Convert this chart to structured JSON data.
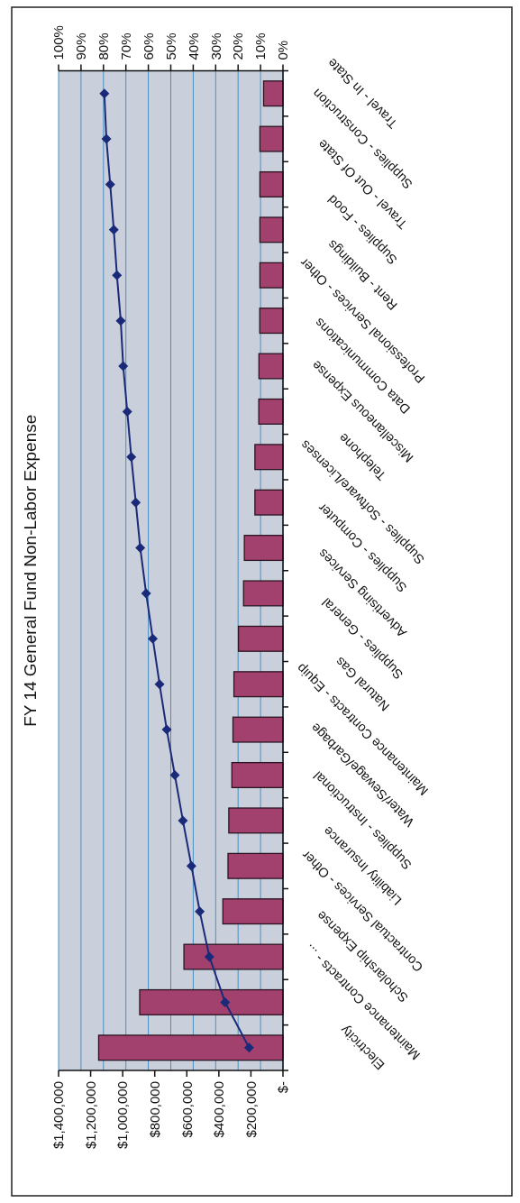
{
  "chart_data": {
    "type": "bar",
    "orientation": "horizontal",
    "title": "FY 14 General Fund Non-Labor Expense",
    "categories": [
      "Travel - In State",
      "Supplies - Construction",
      "Travel - Out Of State",
      "Supplies - Food",
      "Rent - Buildings",
      "Professional Services - Other",
      "Data Communications",
      "Miscellaneous Expense",
      "Telephone",
      "Supplies - Software/Licenses",
      "Supplies - Computer",
      "Advertising Services",
      "Supplies - General",
      "Natural Gas",
      "Maintenance Contracts - Equip",
      "Water/Sewage/Garbage",
      "Supplies - Instructional",
      "Liability Insurance",
      "Contractual Services - Other",
      "Scholarship Expense",
      "Maintenance Contracts - ...",
      "Electricity"
    ],
    "series": [
      {
        "color": "#a3416e",
        "values": [
          121000,
          144000,
          144000,
          144000,
          144000,
          145000,
          150000,
          151000,
          175000,
          175000,
          241000,
          246000,
          278000,
          306000,
          312000,
          319000,
          338000,
          343000,
          375000,
          618000,
          894000,
          1150000
        ]
      },
      {
        "type": "line",
        "axis": "x2",
        "color": "#1b2a78",
        "values": [
          79.6,
          78.7,
          77.0,
          75.4,
          74.0,
          72.3,
          71.2,
          69.4,
          67.6,
          65.6,
          63.6,
          61.0,
          58.0,
          55.0,
          51.8,
          48.2,
          44.6,
          40.8,
          37.1,
          32.8,
          25.8,
          15.1
        ]
      }
    ],
    "xlim": [
      1400000,
      0
    ],
    "xticks": [
      {
        "value": 1400000,
        "label": "$1,400,000"
      },
      {
        "value": 1200000,
        "label": "$1,200,000"
      },
      {
        "value": 1000000,
        "label": "$1,000,000"
      },
      {
        "value": 800000,
        "label": "$800,000"
      },
      {
        "value": 600000,
        "label": "$600,000"
      },
      {
        "value": 400000,
        "label": "$400,000"
      },
      {
        "value": 200000,
        "label": "$200,000"
      },
      {
        "value": 0,
        "label": "$-"
      }
    ],
    "x2lim": [
      100,
      0
    ],
    "x2ticks": [
      {
        "value": 100,
        "label": "100%"
      },
      {
        "value": 90,
        "label": "90%"
      },
      {
        "value": 80,
        "label": "80%"
      },
      {
        "value": 70,
        "label": "70%"
      },
      {
        "value": 60,
        "label": "60%"
      },
      {
        "value": 50,
        "label": "50%"
      },
      {
        "value": 40,
        "label": "40%"
      },
      {
        "value": 30,
        "label": "30%"
      },
      {
        "value": 20,
        "label": "20%"
      },
      {
        "value": 10,
        "label": "10%"
      },
      {
        "value": 0,
        "label": "0%"
      }
    ],
    "grid": true,
    "marker": "diamond",
    "line_style": "solid"
  }
}
